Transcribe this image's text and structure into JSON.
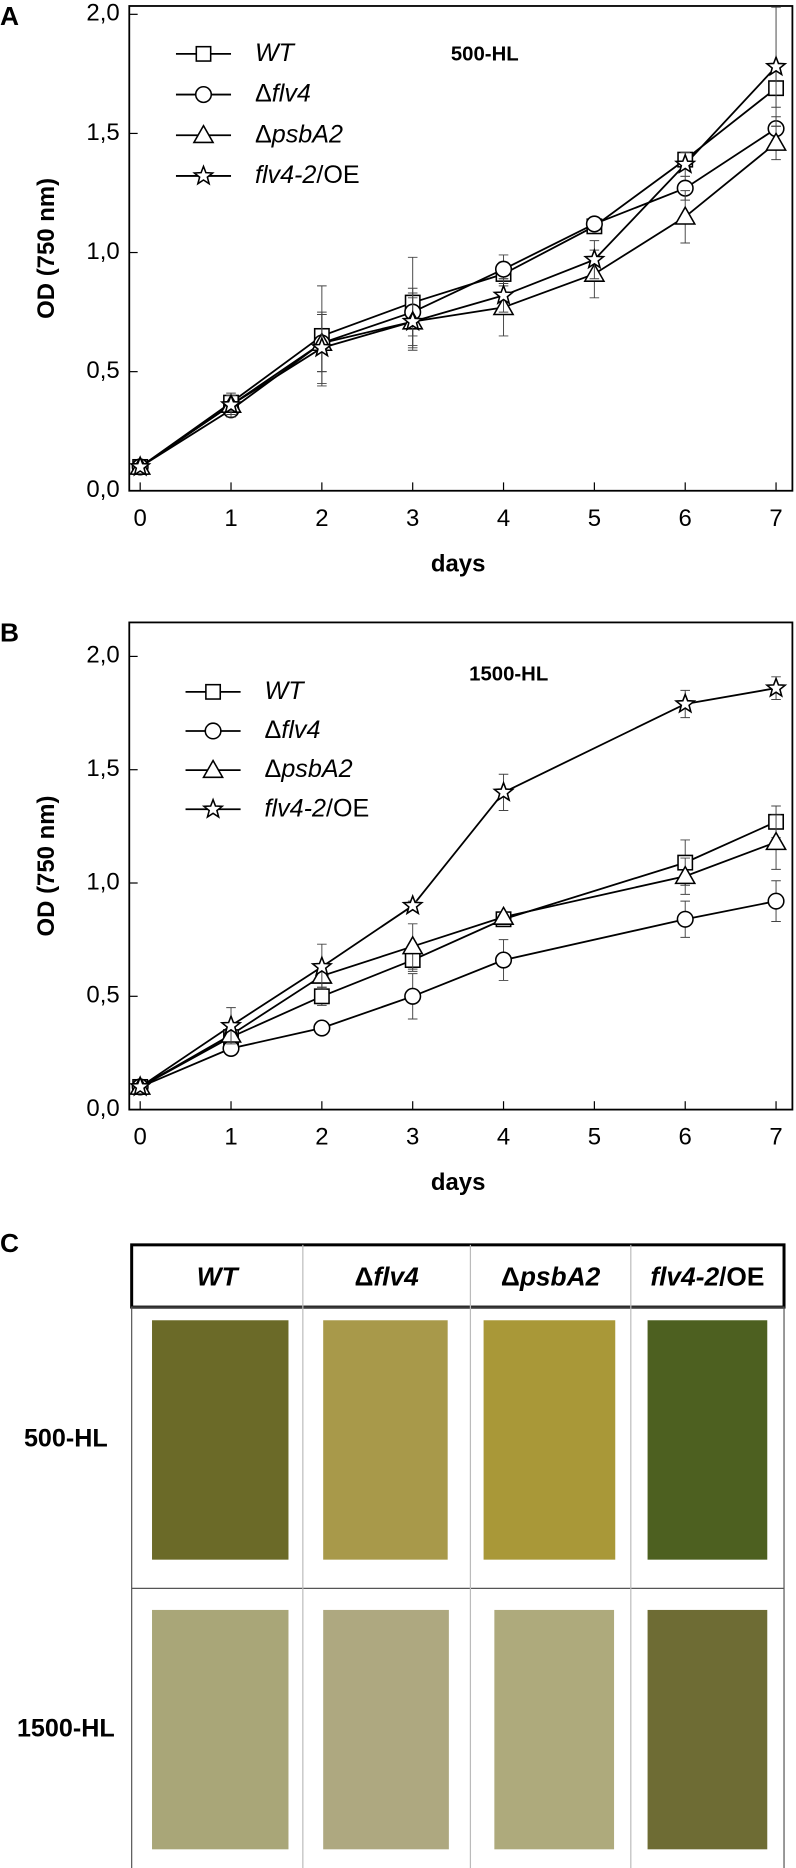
{
  "chart_data": [
    {
      "type": "line",
      "panel_label": "A",
      "annotation": "500-HL",
      "x_label": "days",
      "y_label": "OD (750 nm)",
      "xlim": [
        -0.12,
        7.18
      ],
      "ylim": [
        0,
        2.035
      ],
      "xticks": [
        0,
        1,
        2,
        3,
        4,
        5,
        6,
        7
      ],
      "yticks": [
        {
          "value": 0,
          "label": "0,0"
        },
        {
          "value": 0.5,
          "label": "0,5"
        },
        {
          "value": 1,
          "label": "1,0"
        },
        {
          "value": 1.5,
          "label": "1,5"
        },
        {
          "value": 2,
          "label": "2,0"
        }
      ],
      "x": [
        0,
        1,
        2,
        3,
        4,
        5,
        6,
        7
      ],
      "series": [
        {
          "name": "WT",
          "color": "#000000",
          "marker": "square",
          "values": [
            0.1,
            0.37,
            0.65,
            0.79,
            0.91,
            1.11,
            1.39,
            1.69
          ],
          "errors": [
            0.01,
            0.03,
            0.21,
            0.19,
            0.05,
            0.02,
            0.02,
            0.08
          ]
        },
        {
          "name": "Δflv4",
          "color": "#000000",
          "marker": "circle",
          "values": [
            0.1,
            0.34,
            0.62,
            0.75,
            0.93,
            1.12,
            1.27,
            1.52
          ],
          "errors": [
            0.01,
            0.03,
            0.12,
            0.1,
            0.06,
            0.02,
            0.05,
            0.05
          ]
        },
        {
          "name": "ΔpsbA2",
          "color": "#000000",
          "marker": "triangle",
          "values": [
            0.1,
            0.36,
            0.62,
            0.71,
            0.77,
            0.91,
            1.15,
            1.46
          ],
          "errors": [
            0.01,
            0.04,
            0.12,
            0.1,
            0.12,
            0.1,
            0.11,
            0.07
          ]
        },
        {
          "name": "flv4-2/OE",
          "color": "#000000",
          "marker": "star",
          "values": [
            0.1,
            0.36,
            0.6,
            0.71,
            0.82,
            0.97,
            1.37,
            1.78
          ],
          "errors": [
            0.01,
            0.05,
            0.15,
            0.12,
            0.07,
            0.08,
            0.05,
            0.25
          ]
        }
      ]
    },
    {
      "type": "line",
      "panel_label": "B",
      "annotation": "1500-HL",
      "x_label": "days",
      "y_label": "OD (750 nm)",
      "xlim": [
        -0.12,
        7.18
      ],
      "ylim": [
        0,
        2.15
      ],
      "xticks": [
        0,
        1,
        2,
        3,
        4,
        5,
        6,
        7
      ],
      "yticks": [
        {
          "value": 0,
          "label": "0,0"
        },
        {
          "value": 0.5,
          "label": "0,5"
        },
        {
          "value": 1,
          "label": "1,0"
        },
        {
          "value": 1.5,
          "label": "1,5"
        },
        {
          "value": 2,
          "label": "2,0"
        }
      ],
      "x": [
        0,
        1,
        2,
        3,
        4,
        6,
        7
      ],
      "series": [
        {
          "name": "WT",
          "color": "#000000",
          "marker": "square",
          "values": [
            0.1,
            0.32,
            0.5,
            0.66,
            0.84,
            1.09,
            1.27
          ],
          "errors": [
            0.01,
            0.03,
            0.04,
            0.05,
            0.03,
            0.1,
            0.07
          ]
        },
        {
          "name": "Δflv4",
          "color": "#000000",
          "marker": "circle",
          "values": [
            0.1,
            0.27,
            0.36,
            0.5,
            0.66,
            0.84,
            0.92
          ],
          "errors": [
            0.01,
            0.02,
            0.02,
            0.1,
            0.09,
            0.08,
            0.09
          ]
        },
        {
          "name": "ΔpsbA2",
          "color": "#000000",
          "marker": "triangle",
          "values": [
            0.1,
            0.33,
            0.59,
            0.72,
            0.85,
            1.03,
            1.18
          ],
          "errors": [
            0.01,
            0.03,
            0.05,
            0.1,
            0.02,
            0.08,
            0.12
          ]
        },
        {
          "name": "flv4-2/OE",
          "color": "#000000",
          "marker": "star",
          "values": [
            0.1,
            0.37,
            0.63,
            0.9,
            1.4,
            1.79,
            1.86
          ],
          "errors": [
            0.01,
            0.08,
            0.1,
            0.02,
            0.08,
            0.06,
            0.05
          ]
        }
      ]
    }
  ],
  "panel_c": {
    "label": "C",
    "columns": [
      "WT",
      "Δflv4",
      "ΔpsbA2",
      "flv4-2/OE"
    ],
    "rows": [
      {
        "label": "500-HL",
        "colors": [
          "#6b6a28",
          "#a8994a",
          "#a99838",
          "#4d6020"
        ]
      },
      {
        "label": "1500-HL",
        "colors": [
          "#a9a678",
          "#aea880",
          "#aeaa7c",
          "#6e6c34"
        ]
      }
    ]
  }
}
